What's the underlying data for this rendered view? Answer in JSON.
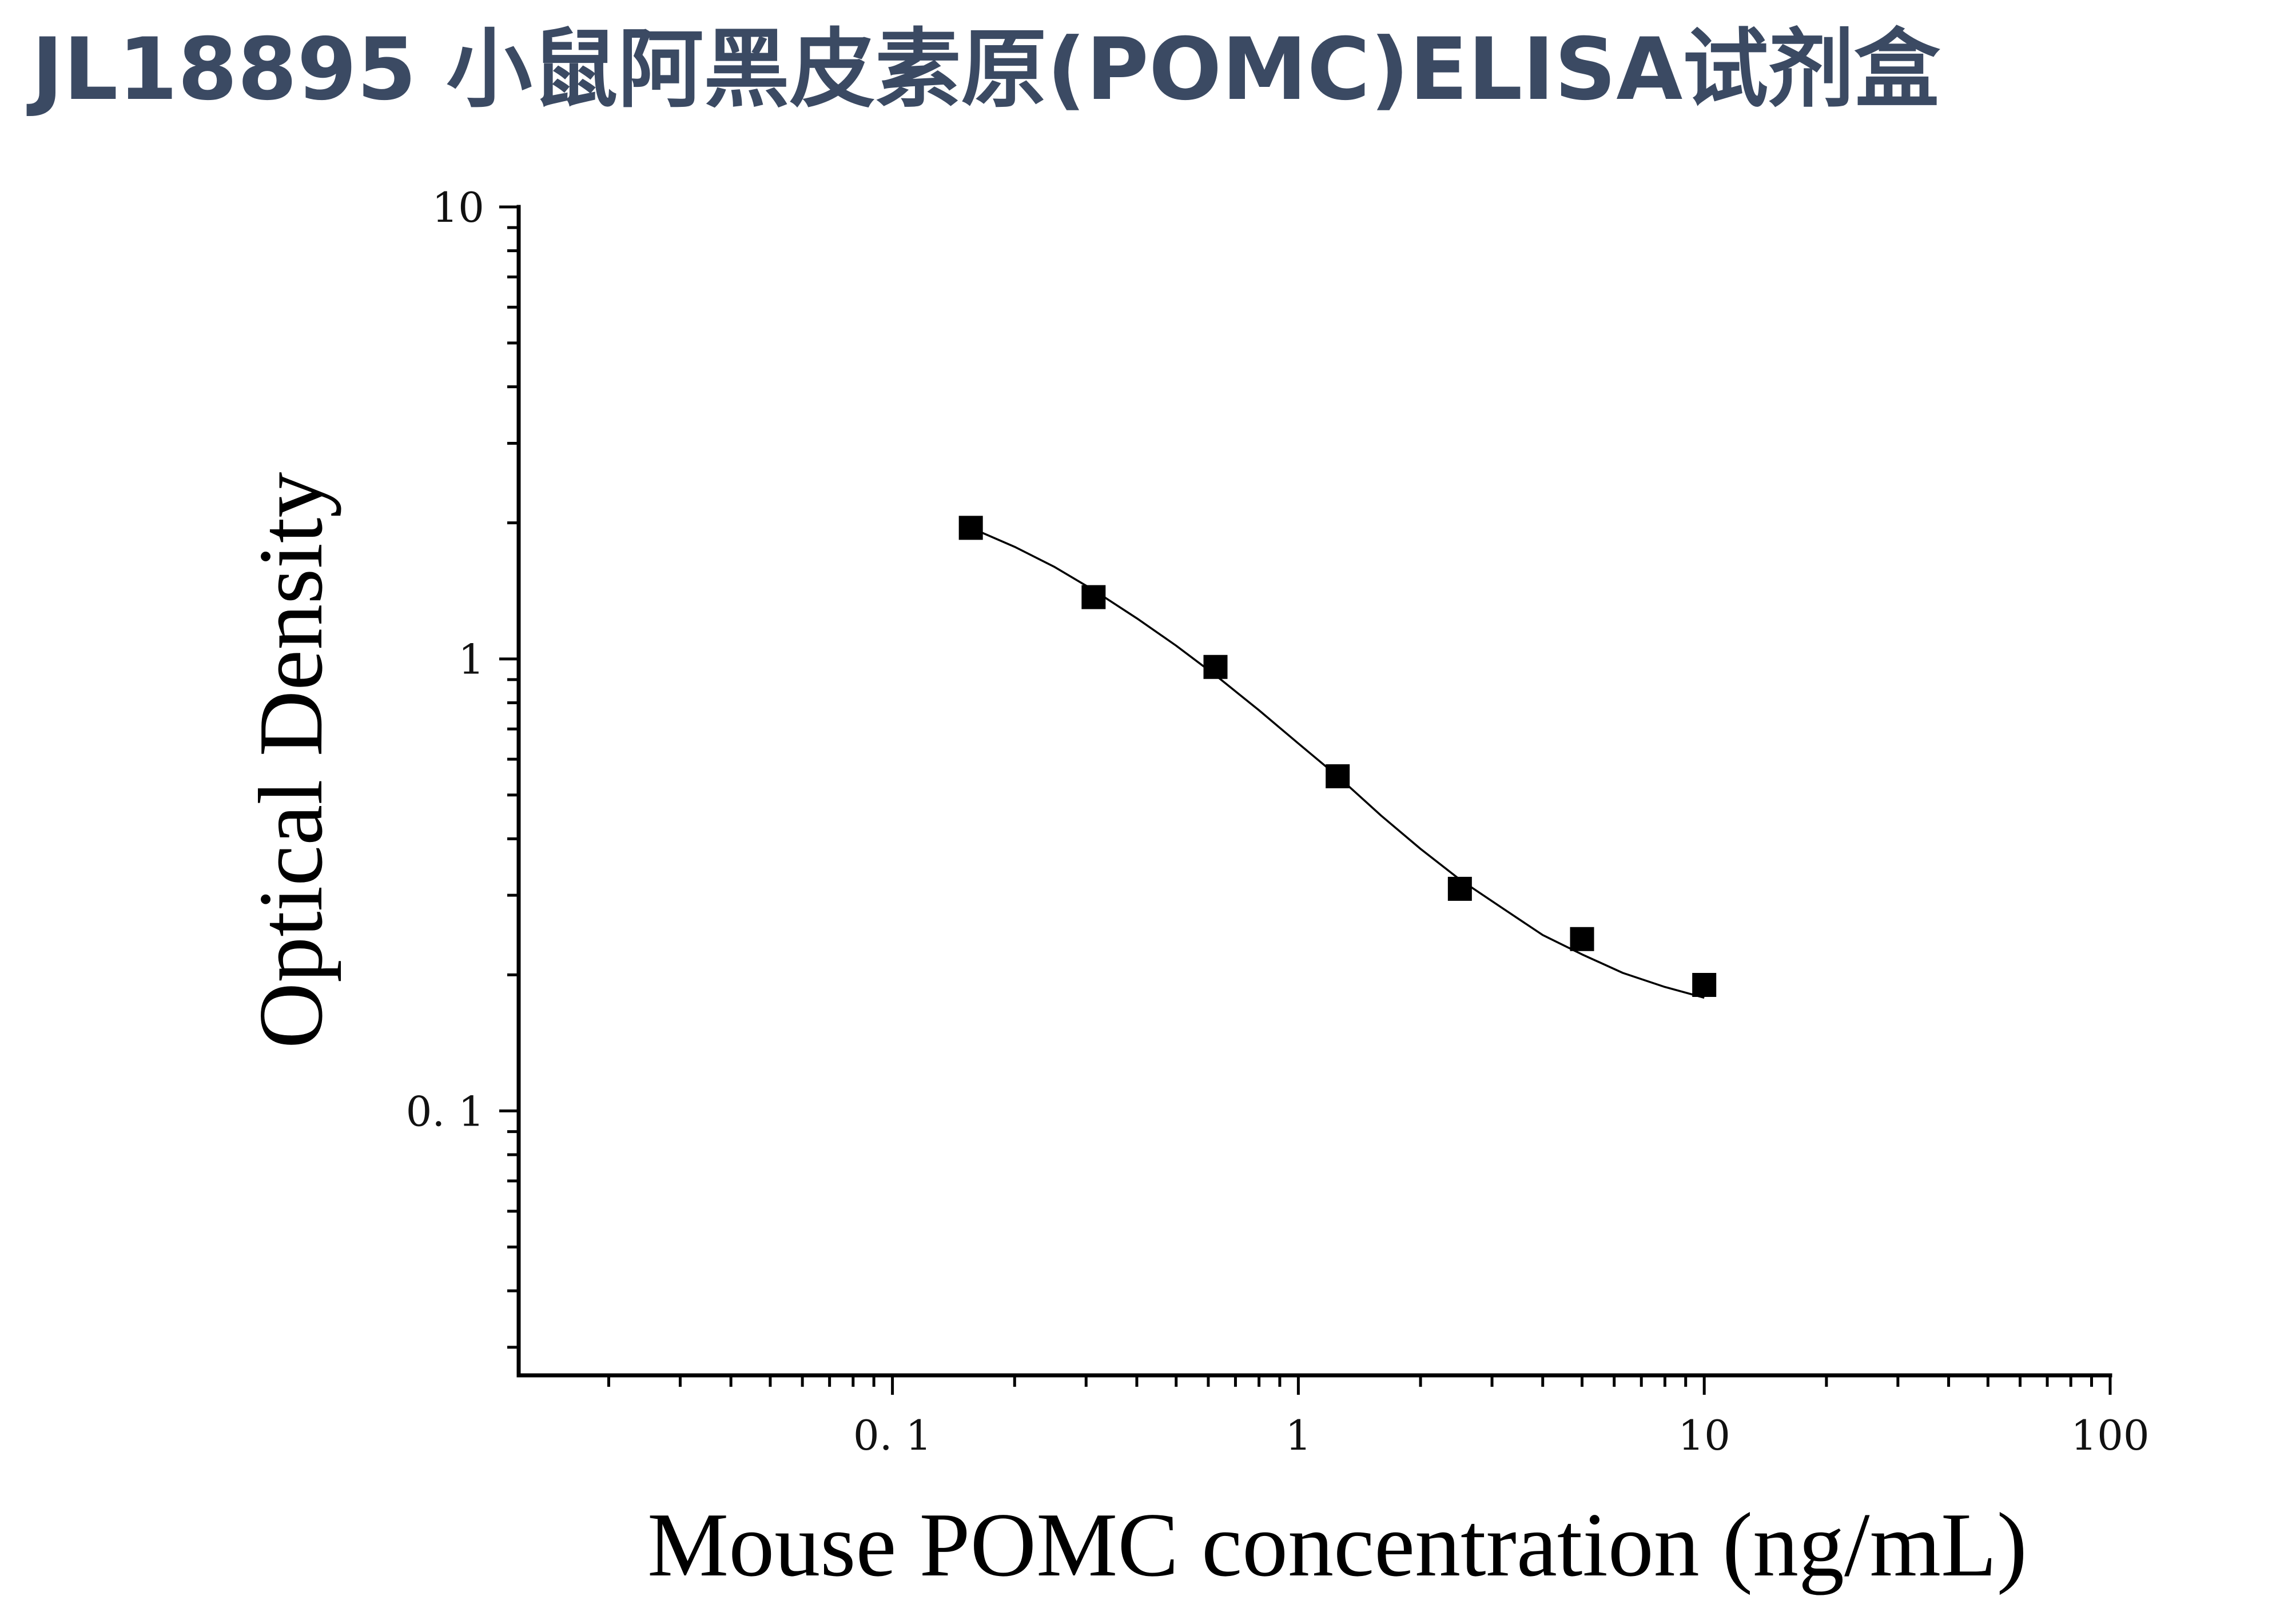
{
  "title": "JL18895 小鼠阿黑皮素原(POMC)ELISA试剂盒",
  "chart_data": {
    "type": "scatter",
    "title": "JL18895 小鼠阿黑皮素原(POMC)ELISA试剂盒",
    "xlabel": "Mouse POMC concentration (ng/mL)",
    "ylabel": "Optical Density",
    "xscale": "log",
    "yscale": "log",
    "xlim": [
      0.012,
      100
    ],
    "ylim": [
      0.026,
      10
    ],
    "xticks": [
      0.1,
      1,
      10,
      100
    ],
    "xtick_labels": [
      "0. 1",
      "1",
      "10",
      "100"
    ],
    "yticks": [
      0.1,
      1,
      10
    ],
    "ytick_labels": [
      "0. 1",
      "1",
      "10"
    ],
    "grid": false,
    "legend": "none",
    "marker": "square",
    "color": "#000000",
    "series": [
      {
        "x": [
          0.156,
          0.313,
          0.625,
          1.25,
          2.5,
          5,
          10
        ],
        "y": [
          1.95,
          1.37,
          0.96,
          0.55,
          0.31,
          0.24,
          0.19
        ]
      }
    ],
    "fit_curve": {
      "x": [
        0.156,
        0.2,
        0.25,
        0.313,
        0.4,
        0.5,
        0.625,
        0.8,
        1.0,
        1.25,
        1.6,
        2.0,
        2.5,
        3.2,
        4.0,
        5.0,
        6.3,
        8.0,
        10
      ],
      "y": [
        1.95,
        1.77,
        1.6,
        1.42,
        1.23,
        1.07,
        0.92,
        0.77,
        0.65,
        0.55,
        0.45,
        0.38,
        0.325,
        0.28,
        0.245,
        0.222,
        0.202,
        0.188,
        0.178
      ]
    }
  }
}
